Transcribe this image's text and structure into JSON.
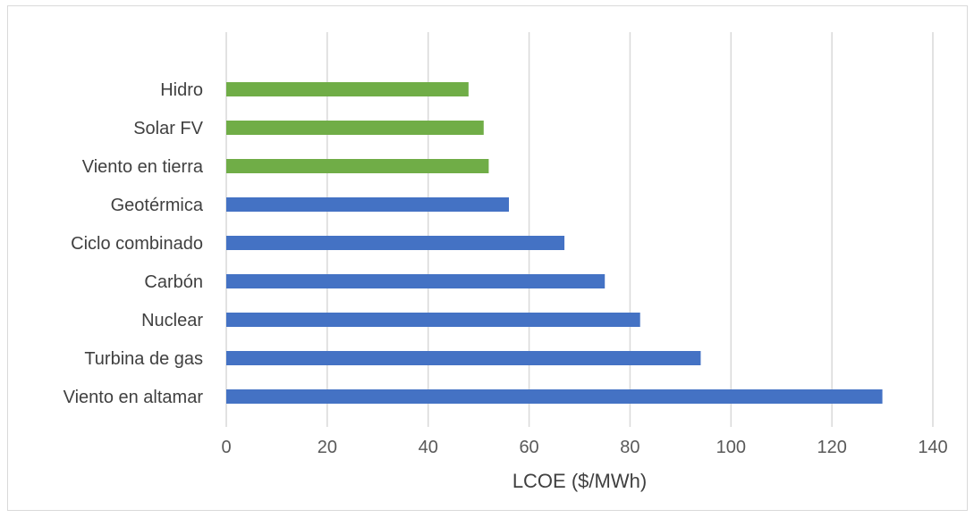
{
  "chart_data": {
    "type": "bar",
    "orientation": "horizontal",
    "categories": [
      "Hidro",
      "Solar FV",
      "Viento en tierra",
      "Geotérmica",
      "Ciclo combinado",
      "Carbón",
      "Nuclear",
      "Turbina de gas",
      "Viento en altamar"
    ],
    "values": [
      48,
      51,
      52,
      56,
      67,
      75,
      82,
      94,
      130
    ],
    "bar_colors": [
      "#70ad47",
      "#70ad47",
      "#70ad47",
      "#4472c4",
      "#4472c4",
      "#4472c4",
      "#4472c4",
      "#4472c4",
      "#4472c4"
    ],
    "xlabel": "LCOE ($/MWh)",
    "xlim": [
      0,
      140
    ],
    "xticks": [
      0,
      20,
      40,
      60,
      80,
      100,
      120,
      140
    ],
    "grid": "vertical",
    "legend": "none"
  }
}
